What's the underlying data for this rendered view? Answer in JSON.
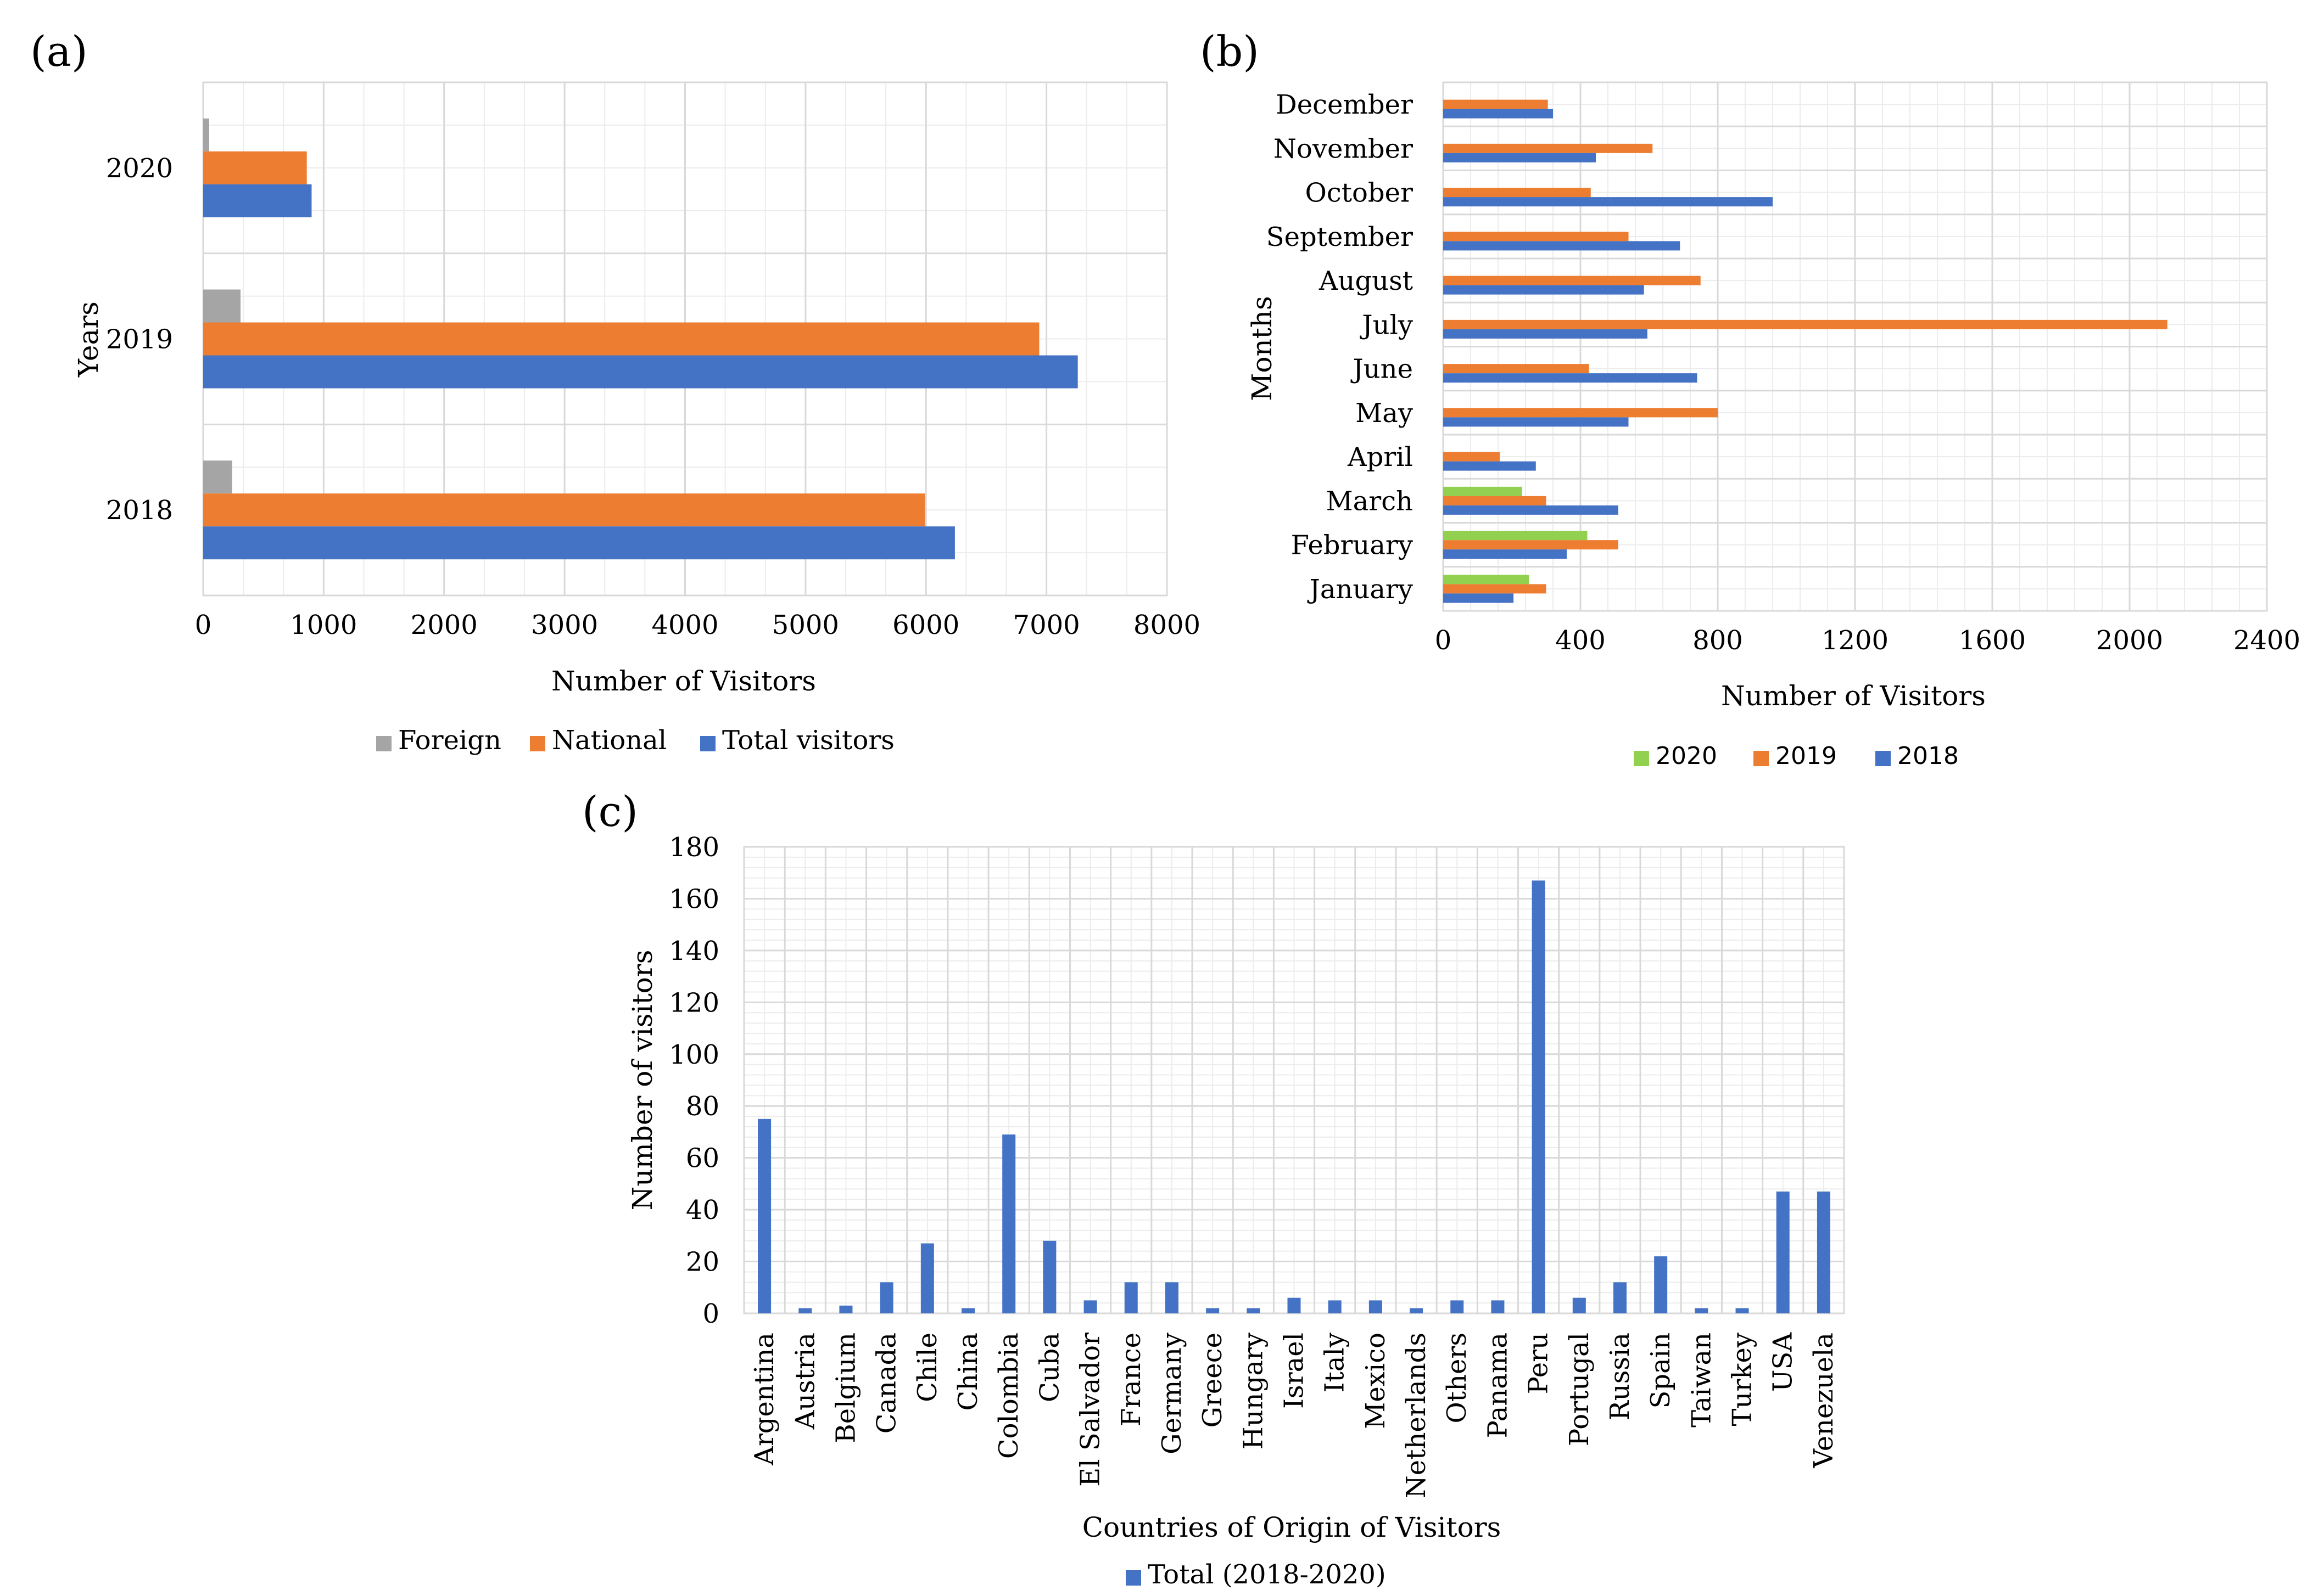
{
  "chart_data": [
    {
      "panel_label": "(a)",
      "type": "bar",
      "orientation": "horizontal",
      "categories": [
        "2018",
        "2019",
        "2020"
      ],
      "series": [
        {
          "name": "Foreign",
          "color": "#a5a5a5",
          "values": [
            240,
            310,
            50
          ]
        },
        {
          "name": "National",
          "color": "#ed7d31",
          "values": [
            5990,
            6940,
            860
          ]
        },
        {
          "name": "Total visitors",
          "color": "#4472c4",
          "values": [
            6240,
            7260,
            900
          ]
        }
      ],
      "xlabel": "Number of Visitors",
      "ylabel": "Years",
      "xlim": [
        0,
        8000
      ],
      "xticks": [
        "0",
        "1000",
        "2000",
        "3000",
        "4000",
        "5000",
        "6000",
        "7000",
        "8000"
      ],
      "legend": "bottom"
    },
    {
      "panel_label": "(b)",
      "type": "bar",
      "orientation": "horizontal",
      "categories": [
        "January",
        "February",
        "March",
        "April",
        "May",
        "June",
        "July",
        "August",
        "September",
        "October",
        "November",
        "December"
      ],
      "series": [
        {
          "name": "2020",
          "color": "#92d050",
          "values": [
            250,
            420,
            230,
            0,
            0,
            0,
            0,
            0,
            0,
            0,
            0,
            0
          ]
        },
        {
          "name": "2019",
          "color": "#ed7d31",
          "values": [
            300,
            510,
            300,
            165,
            800,
            425,
            2110,
            750,
            540,
            430,
            610,
            305
          ]
        },
        {
          "name": "2018",
          "color": "#4472c4",
          "values": [
            205,
            360,
            510,
            270,
            540,
            740,
            595,
            585,
            690,
            960,
            445,
            320
          ]
        }
      ],
      "xlabel": "Number of Visitors",
      "ylabel": "Months",
      "xlim": [
        0,
        2400
      ],
      "xticks": [
        "0",
        "400",
        "800",
        "1200",
        "1600",
        "2000",
        "2400"
      ],
      "legend": "bottom"
    },
    {
      "panel_label": "(c)",
      "type": "bar",
      "orientation": "vertical",
      "categories": [
        "Argentina",
        "Austria",
        "Belgium",
        "Canada",
        "Chile",
        "China",
        "Colombia",
        "Cuba",
        "El Salvador",
        "France",
        "Germany",
        "Greece",
        "Hungary",
        "Israel",
        "Italy",
        "Mexico",
        "Netherlands",
        "Others",
        "Panama",
        "Peru",
        "Portugal",
        "Russia",
        "Spain",
        "Taiwan",
        "Turkey",
        "USA",
        "Venezuela"
      ],
      "series": [
        {
          "name": "Total (2018-2020)",
          "color": "#4472c4",
          "values": [
            75,
            2,
            3,
            12,
            27,
            2,
            69,
            28,
            5,
            12,
            12,
            2,
            2,
            6,
            5,
            5,
            2,
            5,
            5,
            167,
            6,
            12,
            22,
            2,
            2,
            47,
            47
          ]
        }
      ],
      "xlabel": "Countries of Origin of Visitors",
      "ylabel": "Number of visitors",
      "ylim": [
        0,
        180
      ],
      "yticks": [
        "0",
        "20",
        "40",
        "60",
        "80",
        "100",
        "120",
        "140",
        "160",
        "180"
      ],
      "legend": "bottom"
    }
  ]
}
